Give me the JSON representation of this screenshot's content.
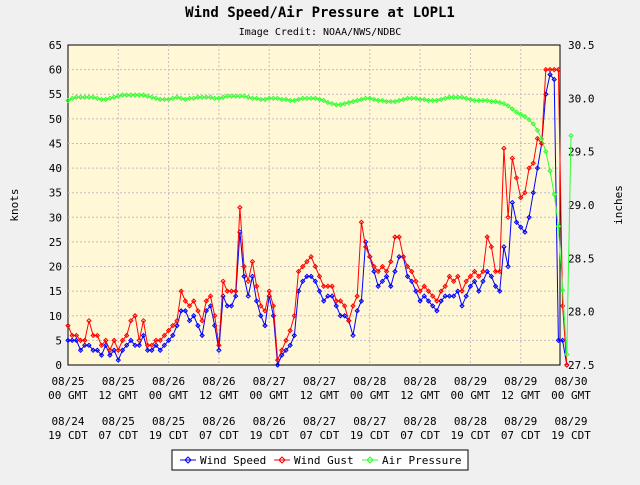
{
  "chart_data": {
    "type": "line",
    "title": "Wind Speed/Air Pressure at LOPL1",
    "subtitle": "Image Credit: NOAA/NWS/NDBC",
    "ylabel_left": "knots",
    "ylabel_right": "inches",
    "ylim_left": [
      0,
      65
    ],
    "ylim_right": [
      27.5,
      30.5
    ],
    "yticks_left": [
      "0",
      "5",
      "10",
      "15",
      "20",
      "25",
      "30",
      "35",
      "40",
      "45",
      "50",
      "55",
      "60",
      "65"
    ],
    "yticks_right": [
      "27.5",
      "28.0",
      "28.5",
      "29.0",
      "29.5",
      "30.0",
      "30.5"
    ],
    "grid": true,
    "legend_position": "bottom",
    "x_ticks": [
      {
        "gmt_date": "08/25",
        "gmt_time": "00 GMT",
        "local_date": "08/24",
        "local_time": "19 CDT"
      },
      {
        "gmt_date": "08/25",
        "gmt_time": "12 GMT",
        "local_date": "08/25",
        "local_time": "07 CDT"
      },
      {
        "gmt_date": "08/26",
        "gmt_time": "00 GMT",
        "local_date": "08/25",
        "local_time": "19 CDT"
      },
      {
        "gmt_date": "08/26",
        "gmt_time": "12 GMT",
        "local_date": "08/26",
        "local_time": "07 CDT"
      },
      {
        "gmt_date": "08/27",
        "gmt_time": "00 GMT",
        "local_date": "08/26",
        "local_time": "19 CDT"
      },
      {
        "gmt_date": "08/27",
        "gmt_time": "12 GMT",
        "local_date": "08/27",
        "local_time": "07 CDT"
      },
      {
        "gmt_date": "08/28",
        "gmt_time": "00 GMT",
        "local_date": "08/27",
        "local_time": "19 CDT"
      },
      {
        "gmt_date": "08/28",
        "gmt_time": "12 GMT",
        "local_date": "08/28",
        "local_time": "07 CDT"
      },
      {
        "gmt_date": "08/29",
        "gmt_time": "00 GMT",
        "local_date": "08/28",
        "local_time": "19 CDT"
      },
      {
        "gmt_date": "08/29",
        "gmt_time": "12 GMT",
        "local_date": "08/29",
        "local_time": "07 CDT"
      },
      {
        "gmt_date": "08/30",
        "gmt_time": "00 GMT",
        "local_date": "08/29",
        "local_time": "19 CDT"
      }
    ],
    "hours_per_step": 1,
    "series": [
      {
        "name": "Wind Speed",
        "color": "#0000ff",
        "axis": "left",
        "values": [
          5,
          5,
          5,
          3,
          4,
          4,
          3,
          3,
          2,
          4,
          2,
          3,
          1,
          3,
          4,
          5,
          4,
          4,
          6,
          3,
          3,
          4,
          3,
          4,
          5,
          6,
          8,
          11,
          11,
          9,
          10,
          8,
          6,
          11,
          12,
          8,
          3,
          14,
          12,
          12,
          14,
          27,
          18,
          14,
          18,
          13,
          10,
          8,
          14,
          10,
          0,
          2,
          3,
          4,
          6,
          15,
          17,
          18,
          18,
          17,
          15,
          13,
          14,
          14,
          12,
          10,
          10,
          9,
          6,
          11,
          13,
          25,
          22,
          19,
          16,
          17,
          18,
          16,
          19,
          22,
          22,
          18,
          17,
          15,
          13,
          14,
          13,
          12,
          11,
          13,
          14,
          14,
          14,
          15,
          12,
          14,
          16,
          17,
          15,
          17,
          19,
          18,
          16,
          15,
          24,
          20,
          33,
          29,
          28,
          27,
          30,
          35,
          40,
          45,
          55,
          59,
          58,
          5,
          5,
          0
        ]
      },
      {
        "name": "Wind Gust",
        "color": "#ff0000",
        "axis": "left",
        "values": [
          8,
          6,
          6,
          5,
          5,
          9,
          6,
          6,
          4,
          5,
          3,
          5,
          3,
          5,
          6,
          9,
          10,
          5,
          9,
          4,
          4,
          5,
          5,
          6,
          7,
          8,
          9,
          15,
          13,
          12,
          13,
          11,
          9,
          13,
          14,
          10,
          4,
          17,
          15,
          15,
          15,
          32,
          20,
          17,
          21,
          16,
          12,
          11,
          15,
          12,
          1,
          3,
          5,
          7,
          10,
          19,
          20,
          21,
          22,
          20,
          18,
          16,
          16,
          16,
          13,
          13,
          12,
          9,
          12,
          14,
          29,
          24,
          22,
          20,
          19,
          20,
          19,
          21,
          26,
          26,
          22,
          20,
          19,
          17,
          15,
          16,
          15,
          14,
          13,
          15,
          16,
          18,
          17,
          18,
          15,
          17,
          18,
          19,
          18,
          19,
          26,
          24,
          19,
          19,
          44,
          30,
          42,
          38,
          34,
          35,
          40,
          41,
          46,
          45,
          60,
          60,
          60,
          60,
          12,
          0
        ]
      },
      {
        "name": "Air Pressure",
        "color": "#33ff33",
        "axis": "right",
        "values": [
          29.98,
          30.0,
          30.01,
          30.01,
          30.01,
          30.01,
          30.01,
          30.0,
          29.99,
          29.99,
          30.0,
          30.01,
          30.02,
          30.03,
          30.03,
          30.03,
          30.03,
          30.03,
          30.03,
          30.02,
          30.01,
          30.0,
          29.99,
          29.99,
          29.99,
          30.0,
          30.01,
          30.0,
          29.99,
          30.0,
          30.0,
          30.01,
          30.01,
          30.01,
          30.01,
          30.0,
          30.0,
          30.01,
          30.02,
          30.02,
          30.02,
          30.02,
          30.02,
          30.01,
          30.0,
          30.0,
          29.99,
          29.99,
          30.0,
          30.0,
          30.0,
          29.99,
          29.99,
          29.98,
          29.98,
          29.99,
          30.0,
          30.0,
          30.0,
          30.0,
          29.99,
          29.98,
          29.96,
          29.95,
          29.94,
          29.94,
          29.95,
          29.96,
          29.97,
          29.98,
          29.99,
          30.0,
          30.0,
          29.99,
          29.98,
          29.98,
          29.97,
          29.97,
          29.97,
          29.98,
          29.99,
          30.0,
          30.0,
          30.0,
          29.99,
          29.99,
          29.98,
          29.98,
          29.98,
          29.99,
          30.0,
          30.01,
          30.01,
          30.01,
          30.01,
          30.0,
          29.99,
          29.98,
          29.98,
          29.98,
          29.98,
          29.97,
          29.97,
          29.96,
          29.95,
          29.93,
          29.9,
          29.87,
          29.85,
          29.83,
          29.8,
          29.76,
          29.7,
          29.62,
          29.5,
          29.32,
          29.1,
          28.8,
          28.2,
          27.6,
          29.65
        ]
      }
    ]
  }
}
